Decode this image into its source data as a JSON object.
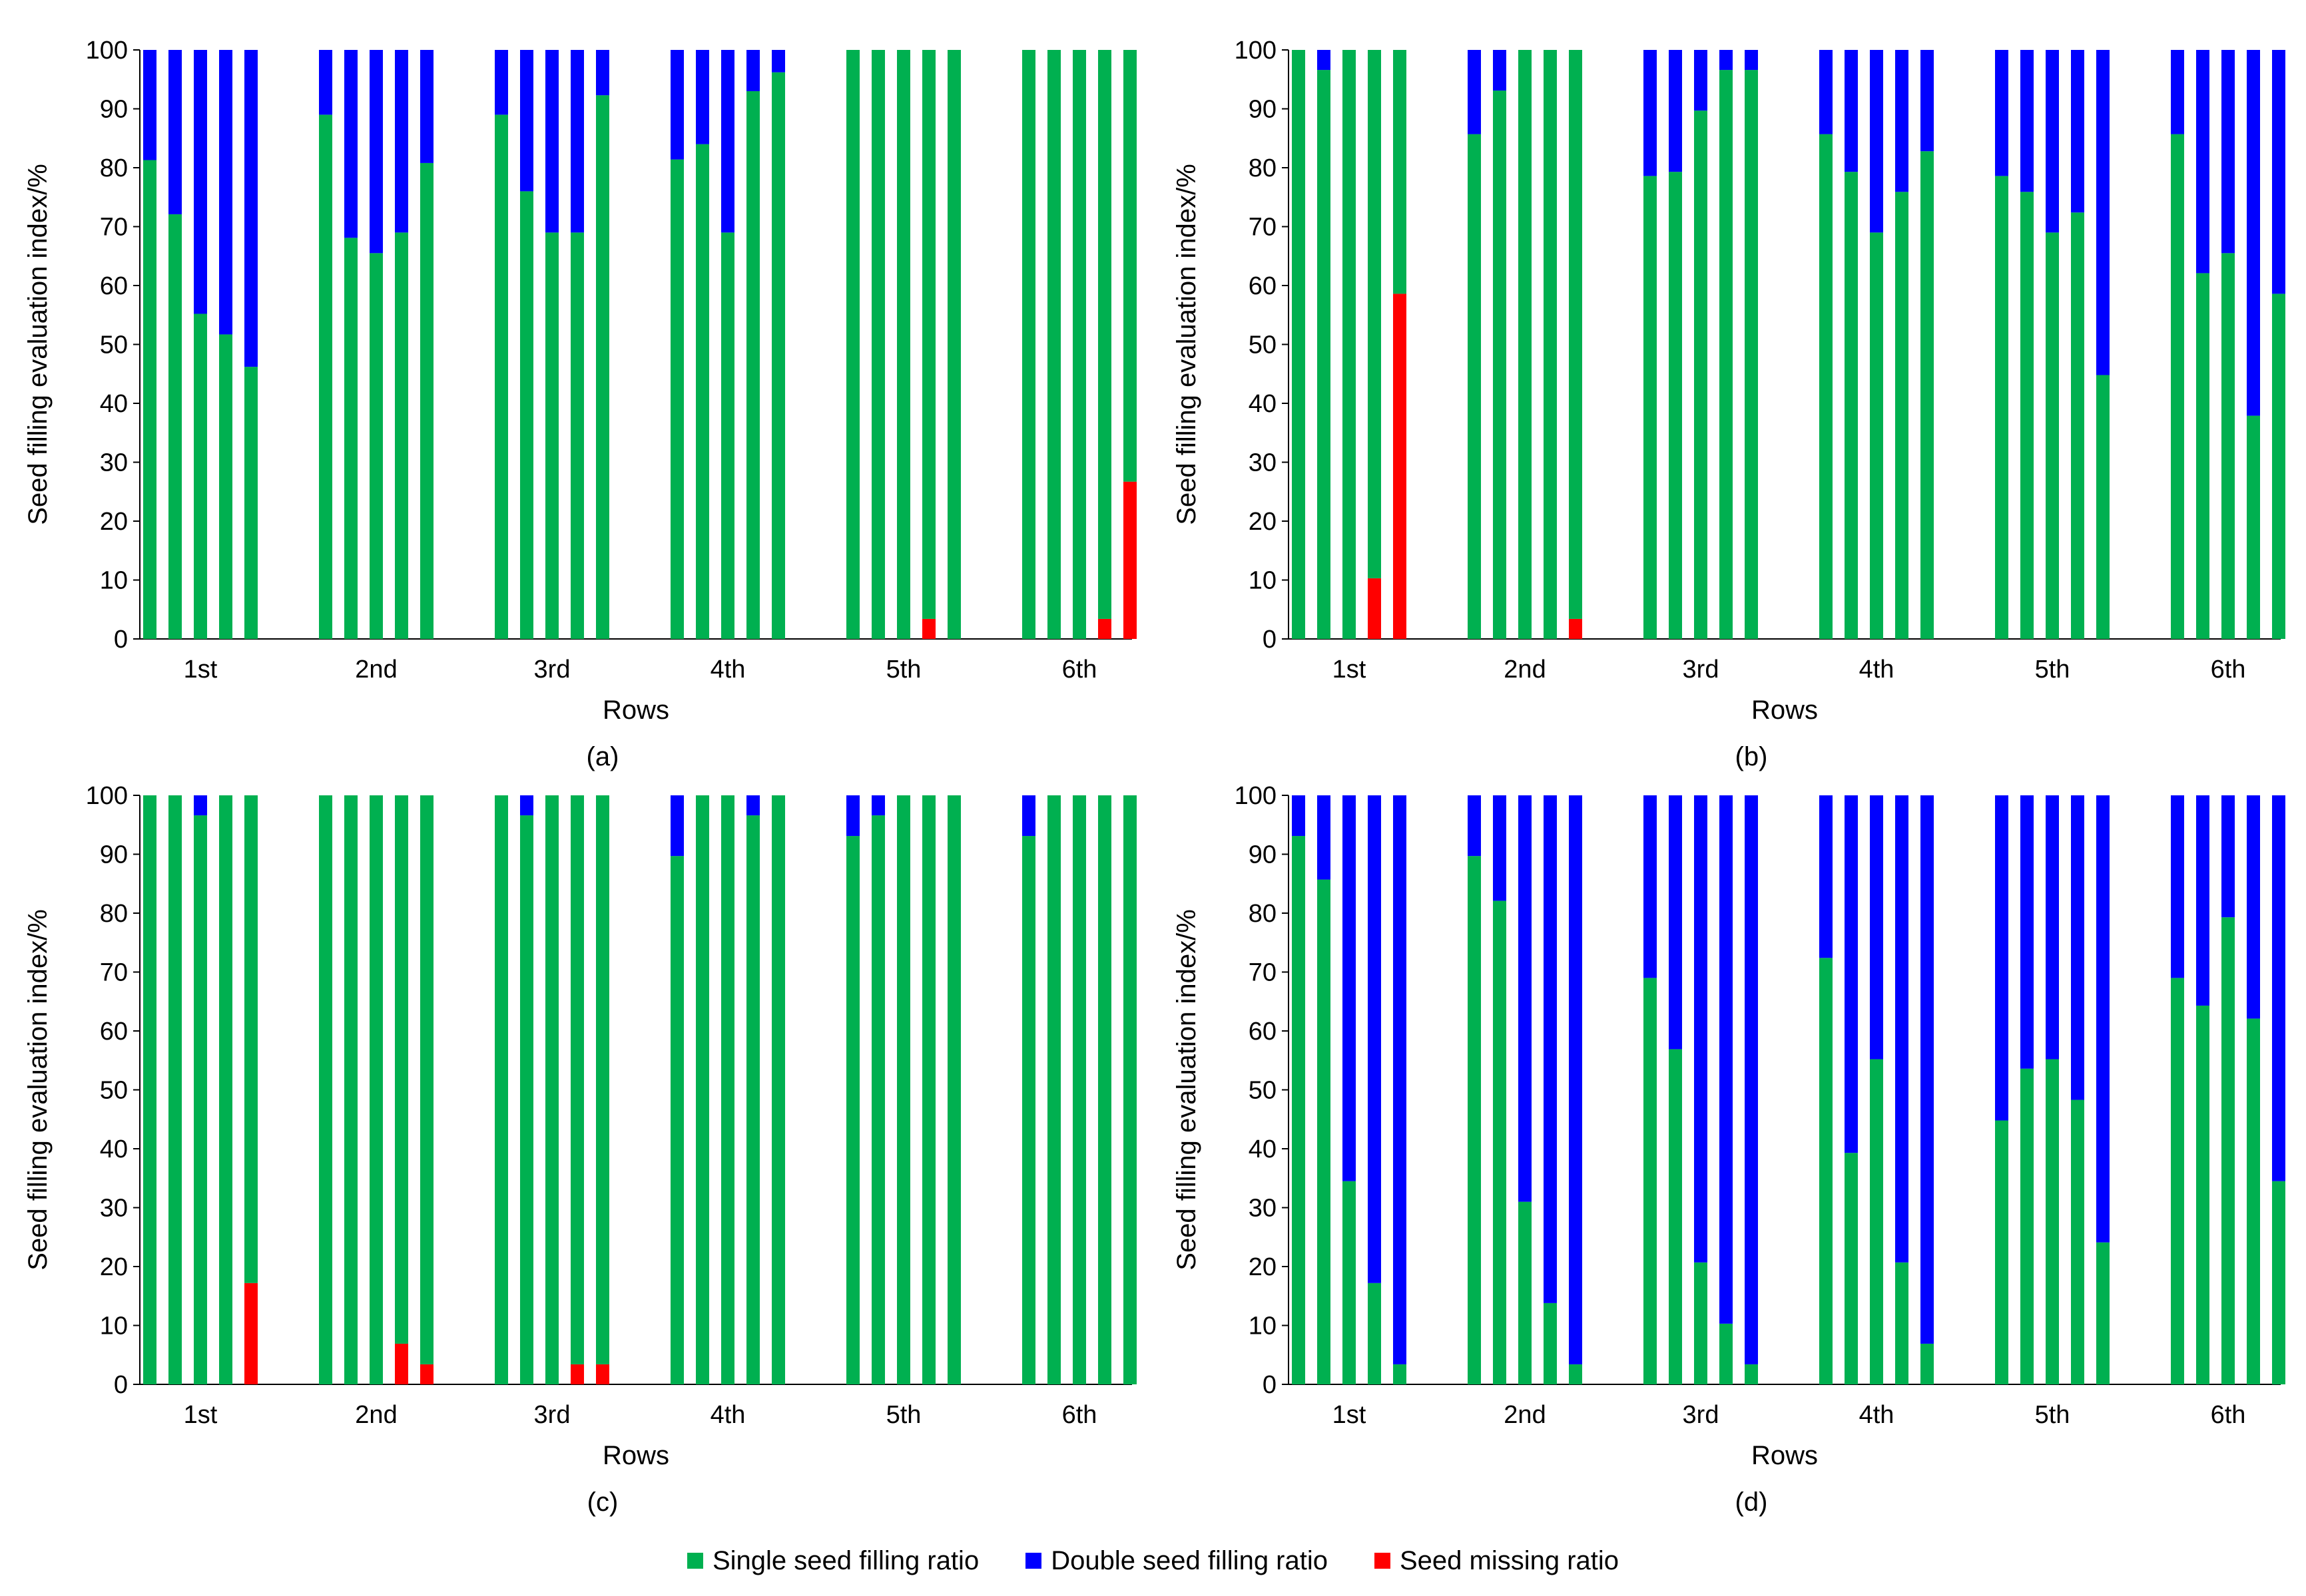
{
  "colors": {
    "single": "#00b050",
    "double": "#0000ff",
    "missing": "#ff0000",
    "axis": "#000000"
  },
  "legend": {
    "single": "Single seed filling ratio",
    "double": "Double seed filling ratio",
    "missing": "Seed missing ratio"
  },
  "chart_data": [
    {
      "type": "bar",
      "stacked": true,
      "panel_label": "(a)",
      "xlabel": "Rows",
      "ylabel": "Seed filling evaluation index/%",
      "ylim": [
        0,
        100
      ],
      "yticks": [
        0,
        10,
        20,
        30,
        40,
        50,
        60,
        70,
        80,
        90,
        100
      ],
      "categories": [
        "1st",
        "2nd",
        "3rd",
        "4th",
        "5th",
        "6th"
      ],
      "bars_per_category": 5,
      "series": [
        {
          "name": "Seed missing ratio",
          "values": [
            [
              0,
              0,
              0,
              0,
              0
            ],
            [
              0,
              0,
              0,
              0,
              0
            ],
            [
              0,
              0,
              0,
              0,
              0
            ],
            [
              0,
              0,
              0,
              0,
              0
            ],
            [
              0,
              0,
              0,
              3.4,
              0
            ],
            [
              0,
              0,
              0,
              3.4,
              26.7
            ]
          ]
        },
        {
          "name": "Single seed filling ratio",
          "values": [
            [
              81.3,
              72.1,
              55.2,
              51.7,
              46.2
            ],
            [
              89,
              68.1,
              65.5,
              69,
              80.8
            ],
            [
              89,
              76,
              69,
              69,
              92.3
            ],
            [
              81.4,
              84,
              69,
              93,
              96.2
            ],
            [
              100,
              100,
              100,
              96.6,
              100
            ],
            [
              100,
              100,
              100,
              96.6,
              73.3
            ]
          ]
        },
        {
          "name": "Double seed filling ratio",
          "values": [
            [
              18.7,
              27.9,
              44.8,
              48.3,
              53.8
            ],
            [
              11,
              31.9,
              34.5,
              31,
              19.2
            ],
            [
              11,
              24,
              31,
              31,
              7.7
            ],
            [
              18.6,
              16,
              31,
              7,
              3.8
            ],
            [
              0,
              0,
              0,
              0,
              0
            ],
            [
              0,
              0,
              0,
              0,
              0
            ]
          ]
        }
      ]
    },
    {
      "type": "bar",
      "stacked": true,
      "panel_label": "(b)",
      "xlabel": "Rows",
      "ylabel": "Seed filling evaluation index/%",
      "ylim": [
        0,
        100
      ],
      "yticks": [
        0,
        10,
        20,
        30,
        40,
        50,
        60,
        70,
        80,
        90,
        100
      ],
      "categories": [
        "1st",
        "2nd",
        "3rd",
        "4th",
        "5th",
        "6th"
      ],
      "bars_per_category": 5,
      "series": [
        {
          "name": "Seed missing ratio",
          "values": [
            [
              0,
              0,
              0,
              10.3,
              58.6
            ],
            [
              0,
              0,
              0,
              0,
              3.4
            ],
            [
              0,
              0,
              0,
              0,
              0
            ],
            [
              0,
              0,
              0,
              0,
              0
            ],
            [
              0,
              0,
              0,
              0,
              0
            ],
            [
              0,
              0,
              0,
              0,
              0
            ]
          ]
        },
        {
          "name": "Single seed filling ratio",
          "values": [
            [
              100,
              96.6,
              100,
              89.7,
              41.4
            ],
            [
              85.7,
              93.1,
              100,
              100,
              96.6
            ],
            [
              78.6,
              79.3,
              89.7,
              96.6,
              96.6
            ],
            [
              85.7,
              79.3,
              69,
              75.9,
              82.8
            ],
            [
              78.6,
              75.9,
              69,
              72.4,
              44.8
            ],
            [
              85.7,
              62.1,
              65.5,
              37.9,
              58.6
            ]
          ]
        },
        {
          "name": "Double seed filling ratio",
          "values": [
            [
              0,
              3.4,
              0,
              0,
              0
            ],
            [
              14.3,
              6.9,
              0,
              0,
              0
            ],
            [
              21.4,
              20.7,
              10.3,
              3.4,
              3.4
            ],
            [
              14.3,
              20.7,
              31,
              24.1,
              17.2
            ],
            [
              21.4,
              24.1,
              31,
              27.6,
              55.2
            ],
            [
              14.3,
              37.9,
              34.5,
              62.1,
              41.4
            ]
          ]
        }
      ]
    },
    {
      "type": "bar",
      "stacked": true,
      "panel_label": "(c)",
      "xlabel": "Rows",
      "ylabel": "Seed filling evaluation index/%",
      "ylim": [
        0,
        100
      ],
      "yticks": [
        0,
        10,
        20,
        30,
        40,
        50,
        60,
        70,
        80,
        90,
        100
      ],
      "categories": [
        "1st",
        "2nd",
        "3rd",
        "4th",
        "5th",
        "6th"
      ],
      "bars_per_category": 5,
      "series": [
        {
          "name": "Seed missing ratio",
          "values": [
            [
              0,
              0,
              0,
              0,
              17.2
            ],
            [
              0,
              0,
              0,
              6.9,
              3.4
            ],
            [
              0,
              0,
              0,
              3.4,
              3.4
            ],
            [
              0,
              0,
              0,
              0,
              0
            ],
            [
              0,
              0,
              0,
              0,
              0
            ],
            [
              0,
              0,
              0,
              0,
              0
            ]
          ]
        },
        {
          "name": "Single seed filling ratio",
          "values": [
            [
              100,
              100,
              96.6,
              100,
              82.8
            ],
            [
              100,
              100,
              100,
              93.1,
              96.6
            ],
            [
              100,
              96.6,
              100,
              96.6,
              96.6
            ],
            [
              89.7,
              100,
              100,
              96.6,
              100
            ],
            [
              93.1,
              96.6,
              100,
              100,
              100
            ],
            [
              93.1,
              100,
              100,
              100,
              100
            ]
          ]
        },
        {
          "name": "Double seed filling ratio",
          "values": [
            [
              0,
              0,
              3.4,
              0,
              0
            ],
            [
              0,
              0,
              0,
              0,
              0
            ],
            [
              0,
              3.4,
              0,
              0,
              0
            ],
            [
              10.3,
              0,
              0,
              3.4,
              0
            ],
            [
              6.9,
              3.4,
              0,
              0,
              0
            ],
            [
              6.9,
              0,
              0,
              0,
              0
            ]
          ]
        }
      ]
    },
    {
      "type": "bar",
      "stacked": true,
      "panel_label": "(d)",
      "xlabel": "Rows",
      "ylabel": "Seed filling evaluation index/%",
      "ylim": [
        0,
        100
      ],
      "yticks": [
        0,
        10,
        20,
        30,
        40,
        50,
        60,
        70,
        80,
        90,
        100
      ],
      "categories": [
        "1st",
        "2nd",
        "3rd",
        "4th",
        "5th",
        "6th"
      ],
      "bars_per_category": 5,
      "series": [
        {
          "name": "Seed missing ratio",
          "values": [
            [
              0,
              0,
              0,
              0,
              0
            ],
            [
              0,
              0,
              0,
              0,
              0
            ],
            [
              0,
              0,
              0,
              0,
              0
            ],
            [
              0,
              0,
              0,
              0,
              0
            ],
            [
              0,
              0,
              0,
              0,
              0
            ],
            [
              0,
              0,
              0,
              0,
              0
            ]
          ]
        },
        {
          "name": "Single seed filling ratio",
          "values": [
            [
              93.1,
              85.7,
              34.5,
              17.2,
              3.4
            ],
            [
              89.7,
              82.1,
              31,
              13.8,
              3.4
            ],
            [
              69,
              56.9,
              20.7,
              10.3,
              3.4
            ],
            [
              72.4,
              39.3,
              55.2,
              20.7,
              6.9
            ],
            [
              44.8,
              53.6,
              55.2,
              48.3,
              24.1
            ],
            [
              69,
              64.3,
              79.3,
              62.1,
              34.5
            ]
          ]
        },
        {
          "name": "Double seed filling ratio",
          "values": [
            [
              6.9,
              14.3,
              65.5,
              82.8,
              96.6
            ],
            [
              10.3,
              17.9,
              69,
              86.2,
              96.6
            ],
            [
              31,
              43.1,
              79.3,
              89.7,
              96.6
            ],
            [
              27.6,
              60.7,
              44.8,
              79.3,
              93.1
            ],
            [
              55.2,
              46.4,
              44.8,
              51.7,
              75.9
            ],
            [
              31,
              35.7,
              20.7,
              37.9,
              65.5
            ]
          ]
        }
      ]
    }
  ]
}
